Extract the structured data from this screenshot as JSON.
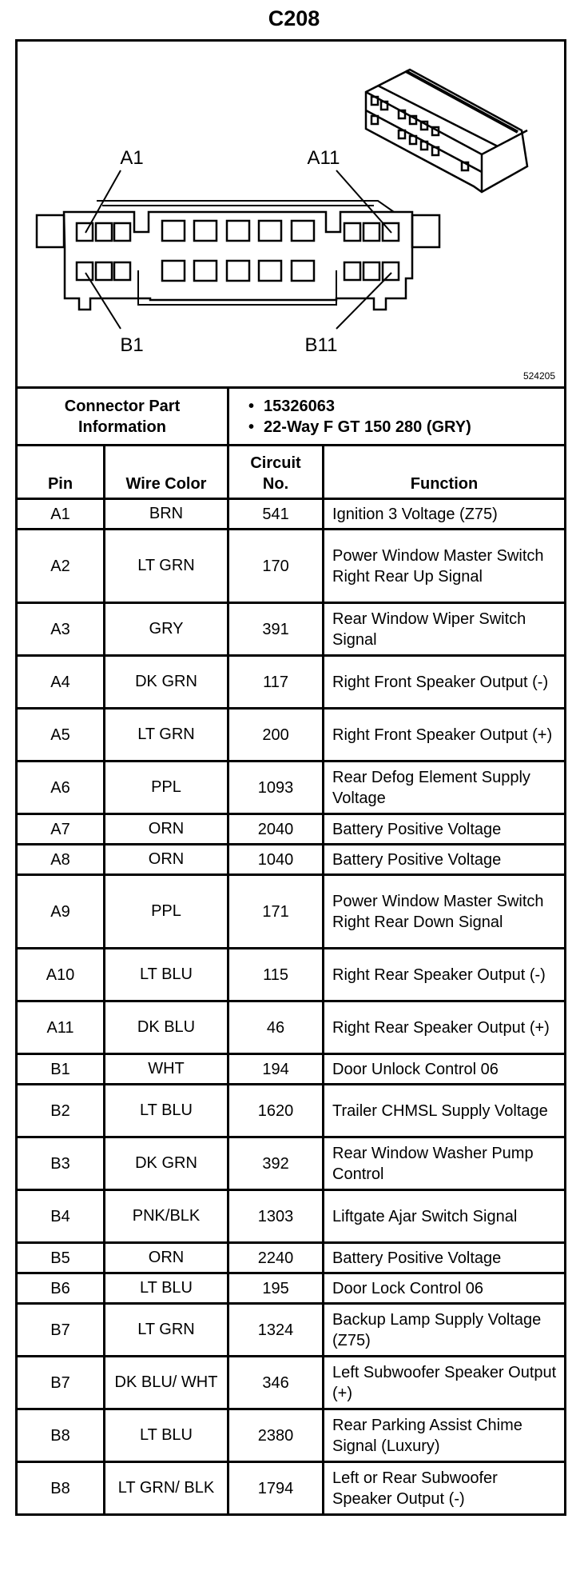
{
  "title": "C208",
  "diagram": {
    "labels": {
      "a1": "A1",
      "a11": "A11",
      "b1": "B1",
      "b11": "B11"
    },
    "figure_number": "524205"
  },
  "part_info": {
    "label": "Connector Part Information",
    "items": [
      "15326063",
      "22-Way F GT 150 280 (GRY)"
    ]
  },
  "headers": {
    "pin": "Pin",
    "wire_color": "Wire Color",
    "circuit": "Circuit No.",
    "function": "Function"
  },
  "rows": [
    {
      "pin": "A1",
      "color": "BRN",
      "circuit": "541",
      "function": "Ignition 3 Voltage (Z75)",
      "lines": 1
    },
    {
      "pin": "A2",
      "color": "LT GRN",
      "circuit": "170",
      "function": "Power Window Master Switch Right Rear Up Signal",
      "lines": 3
    },
    {
      "pin": "A3",
      "color": "GRY",
      "circuit": "391",
      "function": "Rear Window Wiper Switch Signal",
      "lines": 2
    },
    {
      "pin": "A4",
      "color": "DK GRN",
      "circuit": "117",
      "function": "Right Front Speaker Output (-)",
      "lines": 2
    },
    {
      "pin": "A5",
      "color": "LT GRN",
      "circuit": "200",
      "function": "Right Front Speaker Output (+)",
      "lines": 2
    },
    {
      "pin": "A6",
      "color": "PPL",
      "circuit": "1093",
      "function": "Rear Defog Element Supply Voltage",
      "lines": 2
    },
    {
      "pin": "A7",
      "color": "ORN",
      "circuit": "2040",
      "function": "Battery Positive Voltage",
      "lines": 1
    },
    {
      "pin": "A8",
      "color": "ORN",
      "circuit": "1040",
      "function": "Battery Positive Voltage",
      "lines": 1
    },
    {
      "pin": "A9",
      "color": "PPL",
      "circuit": "171",
      "function": "Power Window Master Switch Right Rear Down Signal",
      "lines": 3
    },
    {
      "pin": "A10",
      "color": "LT BLU",
      "circuit": "115",
      "function": "Right Rear Speaker Output (-)",
      "lines": 2
    },
    {
      "pin": "A11",
      "color": "DK BLU",
      "circuit": "46",
      "function": "Right Rear Speaker Output (+)",
      "lines": 2
    },
    {
      "pin": "B1",
      "color": "WHT",
      "circuit": "194",
      "function": "Door Unlock Control 06",
      "lines": 1
    },
    {
      "pin": "B2",
      "color": "LT BLU",
      "circuit": "1620",
      "function": "Trailer CHMSL Supply Voltage",
      "lines": 2
    },
    {
      "pin": "B3",
      "color": "DK GRN",
      "circuit": "392",
      "function": "Rear Window Washer Pump Control",
      "lines": 2
    },
    {
      "pin": "B4",
      "color": "PNK/BLK",
      "circuit": "1303",
      "function": "Liftgate Ajar Switch Signal",
      "lines": 2
    },
    {
      "pin": "B5",
      "color": "ORN",
      "circuit": "2240",
      "function": "Battery Positive Voltage",
      "lines": 1
    },
    {
      "pin": "B6",
      "color": "LT BLU",
      "circuit": "195",
      "function": "Door Lock Control 06",
      "lines": 1
    },
    {
      "pin": "B7",
      "color": "LT GRN",
      "circuit": "1324",
      "function": "Backup Lamp Supply Voltage (Z75)",
      "lines": 2
    },
    {
      "pin": "B7",
      "color": "DK BLU/ WHT",
      "circuit": "346",
      "function": "Left Subwoofer Speaker Output (+)",
      "lines": 2
    },
    {
      "pin": "B8",
      "color": "LT BLU",
      "circuit": "2380",
      "function": "Rear Parking Assist Chime Signal (Luxury)",
      "lines": 2
    },
    {
      "pin": "B8",
      "color": "LT GRN/ BLK",
      "circuit": "1794",
      "function": "Left or Rear Subwoofer Speaker Output (-)",
      "lines": 2
    }
  ]
}
